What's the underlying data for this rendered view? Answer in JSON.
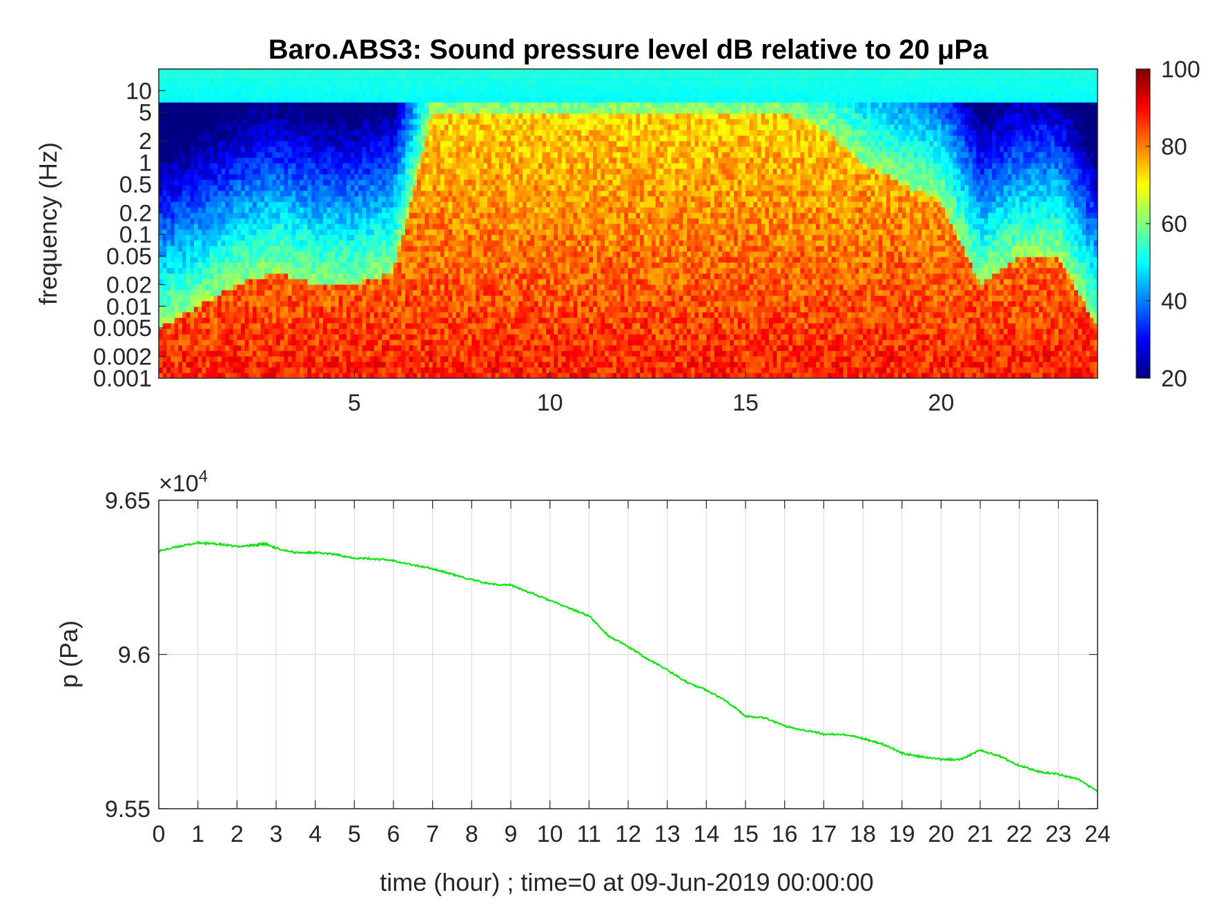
{
  "chart_data": [
    {
      "type": "heatmap",
      "title": "Baro.ABS3: Sound pressure level dB relative to 20 μPa",
      "xlabel": "",
      "ylabel": "frequency (Hz)",
      "x_ticks": [
        5,
        10,
        15,
        20
      ],
      "xlim": [
        0,
        24
      ],
      "y_scale": "log",
      "ylim": [
        0.001,
        20
      ],
      "y_ticks": [
        0.001,
        0.002,
        0.005,
        0.01,
        0.02,
        0.05,
        0.1,
        0.2,
        0.5,
        1,
        2,
        5,
        10
      ],
      "y_tick_labels": [
        "0.001",
        "0.002",
        "0.005",
        "0.01",
        "0.02",
        "0.05",
        "0.1",
        "0.2",
        "0.5",
        "1",
        "2",
        "5",
        "10"
      ],
      "colormap": "jet",
      "colorbar": {
        "min": 20,
        "max": 100,
        "ticks": [
          20,
          40,
          60,
          80,
          100
        ]
      },
      "activity_profile": {
        "description_hours": [
          0,
          1,
          2,
          3,
          4,
          5,
          6,
          7,
          8,
          9,
          10,
          11,
          12,
          13,
          14,
          15,
          16,
          17,
          18,
          19,
          20,
          21,
          22,
          23,
          24
        ],
        "upper_extent_hz": [
          0.005,
          0.01,
          0.02,
          0.03,
          0.02,
          0.02,
          0.03,
          5,
          5,
          5,
          5,
          5,
          5,
          5,
          5,
          5,
          5,
          3,
          1,
          0.5,
          0.3,
          0.02,
          0.05,
          0.05,
          0.005
        ]
      }
    },
    {
      "type": "line",
      "title": "",
      "xlabel": "time (hour) ; time=0 at 09-Jun-2019 00:00:00",
      "ylabel": "p (Pa)",
      "y_multiplier": "×10",
      "y_multiplier_exp": "4",
      "xlim": [
        0,
        24
      ],
      "ylim": [
        95500,
        96500
      ],
      "x_ticks": [
        0,
        1,
        2,
        3,
        4,
        5,
        6,
        7,
        8,
        9,
        10,
        11,
        12,
        13,
        14,
        15,
        16,
        17,
        18,
        19,
        20,
        21,
        22,
        23,
        24
      ],
      "y_ticks": [
        95500,
        96000,
        96500
      ],
      "y_tick_labels": [
        "9.55",
        "9.6",
        "9.65"
      ],
      "grid": true,
      "line_color": "#00e600",
      "x": [
        0,
        0.5,
        1,
        1.5,
        2,
        2.5,
        2.7,
        3,
        3.5,
        4,
        4.5,
        5,
        5.5,
        6,
        6.5,
        7,
        7.5,
        8,
        8.5,
        9,
        9.5,
        10,
        10.5,
        11,
        11.5,
        12,
        12.5,
        13,
        13.5,
        14,
        14.5,
        15,
        15.5,
        16,
        16.5,
        17,
        17.5,
        18,
        18.5,
        19,
        19.5,
        20,
        20.5,
        21,
        21.5,
        22,
        22.5,
        23,
        23.5,
        24
      ],
      "y": [
        96335,
        96350,
        96362,
        96358,
        96350,
        96355,
        96360,
        96345,
        96330,
        96330,
        96325,
        96313,
        96310,
        96305,
        96290,
        96278,
        96260,
        96242,
        96228,
        96225,
        96200,
        96175,
        96150,
        96125,
        96060,
        96025,
        95985,
        95950,
        95910,
        95885,
        95850,
        95800,
        95795,
        95768,
        95755,
        95742,
        95740,
        95728,
        95710,
        95680,
        95668,
        95660,
        95660,
        95690,
        95670,
        95640,
        95620,
        95612,
        95595,
        95555
      ]
    }
  ]
}
